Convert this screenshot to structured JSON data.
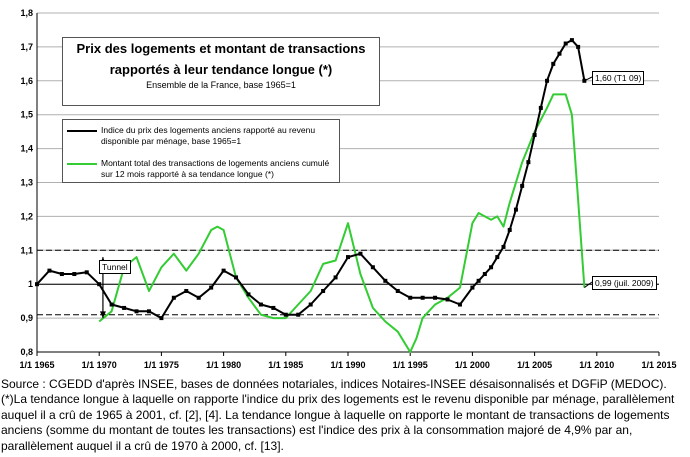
{
  "chart_data": {
    "type": "line",
    "title": "Prix des logements et montant de transactions",
    "title_line2": "rapportés à leur tendance longue (*)",
    "subtitle": "Ensemble de la France, base 1965=1",
    "ylim": [
      0.8,
      1.8
    ],
    "yticks": [
      "0,8",
      "0,9",
      "1",
      "1,1",
      "1,2",
      "1,3",
      "1,4",
      "1,5",
      "1,6",
      "1,7",
      "1,8"
    ],
    "xlim": [
      1965,
      2015
    ],
    "xticks": [
      "1/1 1965",
      "1/1 1970",
      "1/1 1975",
      "1/1 1980",
      "1/1 1985",
      "1/1 1990",
      "1/1 1995",
      "1/1 2000",
      "1/1 2005",
      "1/1 2010",
      "1/1 2015"
    ],
    "grid": "horizontal",
    "reference_lines": [
      0.91,
      1.0,
      1.1
    ],
    "series": [
      {
        "name": "Indice du prix des logements anciens rapporté au revenu disponible par ménage, base 1965=1",
        "color": "#000000",
        "marker": "square",
        "x": [
          1965,
          1966,
          1967,
          1968,
          1969,
          1970,
          1971,
          1972,
          1973,
          1974,
          1975,
          1976,
          1977,
          1978,
          1979,
          1980,
          1981,
          1982,
          1983,
          1984,
          1985,
          1986,
          1987,
          1988,
          1989,
          1990,
          1991,
          1992,
          1993,
          1994,
          1995,
          1996,
          1997,
          1998,
          1999,
          2000,
          2000.5,
          2001,
          2001.5,
          2002,
          2002.5,
          2003,
          2003.5,
          2004,
          2004.5,
          2005,
          2005.5,
          2006,
          2006.5,
          2007,
          2007.5,
          2008,
          2008.5,
          2009
        ],
        "y": [
          1.0,
          1.04,
          1.03,
          1.03,
          1.035,
          1.0,
          0.94,
          0.93,
          0.92,
          0.92,
          0.9,
          0.96,
          0.98,
          0.96,
          0.99,
          1.04,
          1.02,
          0.97,
          0.94,
          0.93,
          0.91,
          0.91,
          0.94,
          0.98,
          1.02,
          1.08,
          1.09,
          1.05,
          1.01,
          0.98,
          0.96,
          0.96,
          0.96,
          0.955,
          0.94,
          0.99,
          1.01,
          1.03,
          1.05,
          1.08,
          1.11,
          1.16,
          1.22,
          1.29,
          1.36,
          1.44,
          1.52,
          1.6,
          1.65,
          1.68,
          1.71,
          1.72,
          1.7,
          1.6
        ]
      },
      {
        "name": "Montant total des transactions de logements anciens cumulé sur 12 mois rapporté à sa tendance longue (*)",
        "color": "#33cc33",
        "x": [
          1970,
          1971,
          1972,
          1973,
          1974,
          1975,
          1976,
          1977,
          1978,
          1979,
          1979.5,
          1980,
          1981,
          1982,
          1983,
          1984,
          1985,
          1986,
          1987,
          1988,
          1989,
          1990,
          1991,
          1992,
          1993,
          1994,
          1995,
          1995.5,
          1996,
          1997,
          1998,
          1999,
          2000,
          2000.5,
          2001,
          2001.5,
          2002,
          2002.5,
          2003,
          2004,
          2005,
          2006,
          2006.5,
          2007,
          2007.5,
          2008,
          2008.5,
          2009
        ],
        "y": [
          0.89,
          0.92,
          1.05,
          1.08,
          0.98,
          1.05,
          1.09,
          1.04,
          1.09,
          1.16,
          1.17,
          1.16,
          1.02,
          0.96,
          0.91,
          0.9,
          0.9,
          0.94,
          0.98,
          1.06,
          1.07,
          1.18,
          1.03,
          0.93,
          0.89,
          0.86,
          0.8,
          0.84,
          0.9,
          0.94,
          0.96,
          0.99,
          1.18,
          1.21,
          1.2,
          1.19,
          1.2,
          1.17,
          1.24,
          1.36,
          1.45,
          1.52,
          1.56,
          1.56,
          1.56,
          1.5,
          1.25,
          0.99
        ]
      }
    ],
    "annotations": [
      "Tunnel",
      "1,60 (T1 09)",
      "0,99 (juil. 2009)"
    ]
  },
  "legend": {
    "black_label": "Indice du prix des logements anciens rapporté au revenu disponible par ménage, base 1965=1",
    "green_label": "Montant total des transactions de logements anciens cumulé sur 12 mois rapporté à sa tendance longue (*)"
  },
  "source": {
    "line1": "Source : CGEDD d'après INSEE, bases de données notariales, indices Notaires-INSEE désaisonnalisés et DGFiP (MEDOC).",
    "line2": "(*)La tendance longue à laquelle on rapporte l'indice du prix des logements est le revenu disponible par ménage, parallèlement auquel il a crû de 1965 à 2001, cf. [2], [4]. La tendance longue à laquelle on rapporte le montant de transactions de logements anciens (somme du montant de toutes les transactions) est l'indice des prix à la consommation majoré de 4,9% par an, parallèlement auquel il a crû de 1970 à 2000, cf. [13]."
  }
}
